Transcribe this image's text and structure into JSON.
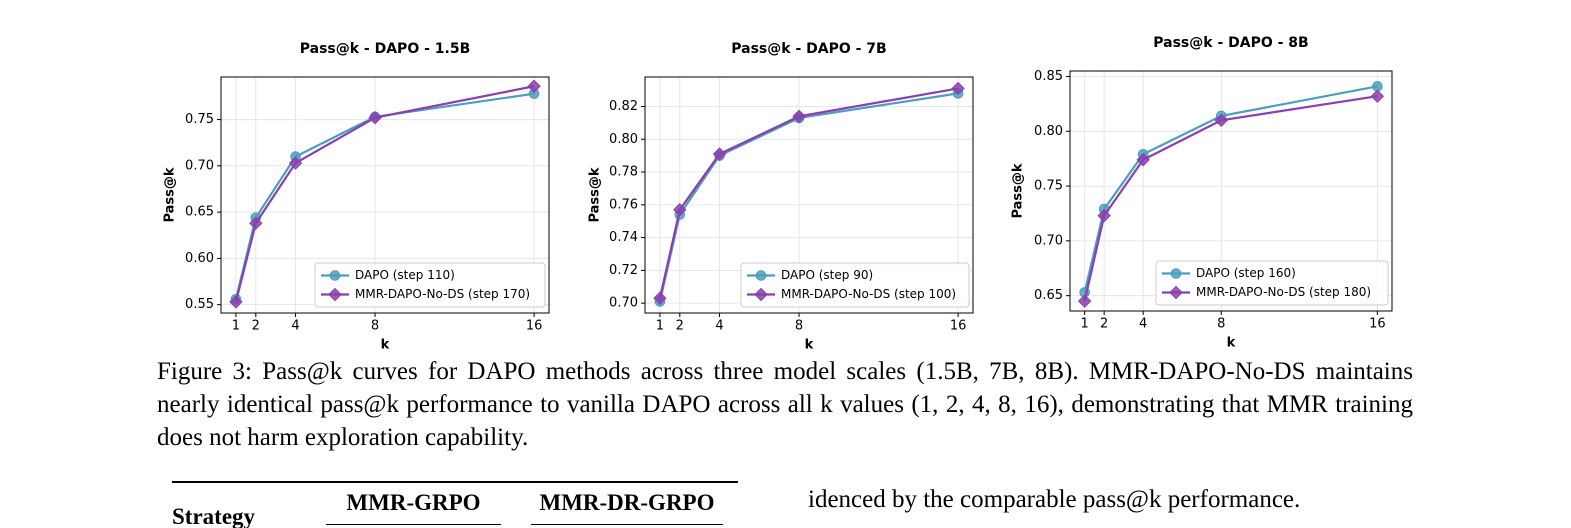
{
  "chart_data": [
    {
      "type": "line",
      "title": "Pass@k - DAPO - 1.5B",
      "xlabel": "k",
      "ylabel": "Pass@k",
      "x": [
        1,
        2,
        4,
        8,
        16
      ],
      "xlim": [
        0.25,
        16.75
      ],
      "xticks": [
        1,
        2,
        4,
        8,
        16
      ],
      "ylim": [
        0.541,
        0.796
      ],
      "yticks": [
        0.55,
        {
          "value": 0.6,
          "label": "0.60"
        },
        0.65,
        {
          "value": 0.7,
          "label": "0.70"
        },
        0.75
      ],
      "grid": true,
      "legend": "lower right",
      "series": [
        {
          "name": "DAPO (step 110)",
          "color": "#4c9dbf",
          "marker": "circle",
          "values": [
            0.556,
            0.644,
            0.71,
            0.753,
            0.778
          ]
        },
        {
          "name": "MMR-DAPO-No-DS (step 170)",
          "color": "#8a3fae",
          "marker": "diamond",
          "values": [
            0.553,
            0.638,
            0.703,
            0.752,
            0.786
          ]
        }
      ]
    },
    {
      "type": "line",
      "title": "Pass@k - DAPO - 7B",
      "xlabel": "k",
      "ylabel": "Pass@k",
      "x": [
        1,
        2,
        4,
        8,
        16
      ],
      "xlim": [
        0.25,
        16.75
      ],
      "xticks": [
        1,
        2,
        4,
        8,
        16
      ],
      "ylim": [
        0.694,
        0.838
      ],
      "yticks": [
        {
          "value": 0.7,
          "label": "0.70"
        },
        0.72,
        0.74,
        0.76,
        0.78,
        {
          "value": 0.8,
          "label": "0.80"
        },
        0.82
      ],
      "grid": true,
      "legend": "lower right",
      "series": [
        {
          "name": "DAPO (step 90)",
          "color": "#4c9dbf",
          "marker": "circle",
          "values": [
            0.701,
            0.754,
            0.79,
            0.813,
            0.828
          ]
        },
        {
          "name": "MMR-DAPO-No-DS (step 100)",
          "color": "#8a3fae",
          "marker": "diamond",
          "values": [
            0.703,
            0.757,
            0.791,
            0.814,
            0.831
          ]
        }
      ]
    },
    {
      "type": "line",
      "title": "Pass@k - DAPO - 8B",
      "xlabel": "k",
      "ylabel": "Pass@k",
      "x": [
        1,
        2,
        4,
        8,
        16
      ],
      "xlim": [
        0.25,
        16.75
      ],
      "xticks": [
        1,
        2,
        4,
        8,
        16
      ],
      "ylim": [
        0.636,
        0.855
      ],
      "yticks": [
        0.65,
        {
          "value": 0.7,
          "label": "0.70"
        },
        0.75,
        {
          "value": 0.8,
          "label": "0.80"
        },
        0.85
      ],
      "grid": true,
      "legend": "lower right",
      "series": [
        {
          "name": "DAPO (step 160)",
          "color": "#4c9dbf",
          "marker": "circle",
          "values": [
            0.653,
            0.729,
            0.779,
            0.814,
            0.841
          ]
        },
        {
          "name": "MMR-DAPO-No-DS (step 180)",
          "color": "#8a3fae",
          "marker": "diamond",
          "values": [
            0.645,
            0.723,
            0.774,
            0.81,
            0.832
          ]
        }
      ]
    }
  ],
  "caption": "Figure 3: Pass@k curves for DAPO methods across three model scales (1.5B, 7B, 8B). MMR-DAPO-No-DS maintains nearly identical pass@k performance to vanilla DAPO across all k values (1, 2, 4, 8, 16), demonstrating that MMR training does not harm exploration capability.",
  "table": {
    "header": [
      "Strategy",
      "MMR-GRPO",
      "MMR-DR-GRPO"
    ]
  },
  "body_text": "idenced by the comparable pass@k performance."
}
